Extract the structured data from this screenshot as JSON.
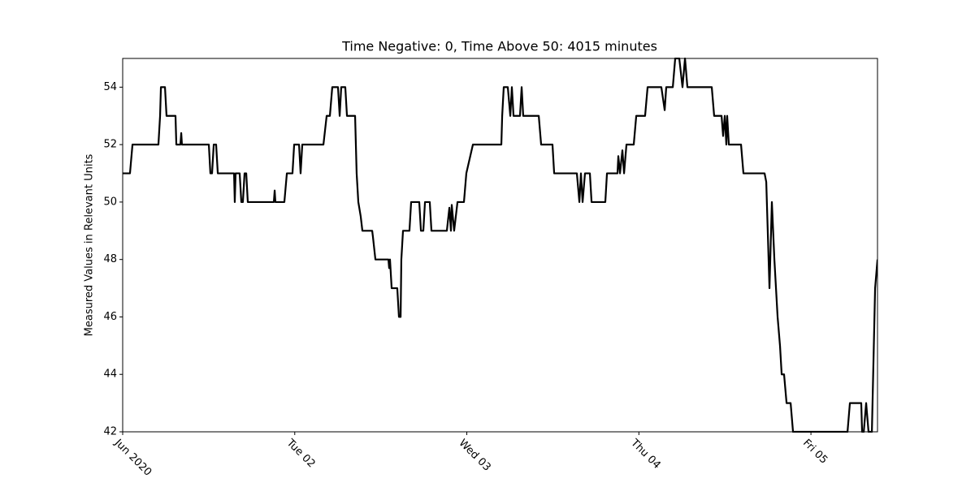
{
  "chart_data": {
    "type": "line",
    "title": "Time Negative: 0, Time Above 50: 4015 minutes",
    "ylabel": "Measured Values in Relevant Units",
    "color": "#000000",
    "xlim": [
      "2020-06-01T00:00",
      "2020-06-05T09:17"
    ],
    "xticks": [
      {
        "value": "2020-06-01T00:00",
        "label": "Jun 2020"
      },
      {
        "value": "2020-06-02T00:00",
        "label": "Tue 02"
      },
      {
        "value": "2020-06-03T00:00",
        "label": "Wed 03"
      },
      {
        "value": "2020-06-04T00:00",
        "label": "Thu 04"
      },
      {
        "value": "2020-06-05T00:00",
        "label": "Fri 05"
      }
    ],
    "ylim": [
      42,
      55
    ],
    "yticks": [
      42,
      44,
      46,
      48,
      50,
      52,
      54
    ],
    "x": [
      "2020-06-01T00:00",
      "2020-06-01T01:01",
      "2020-06-01T01:22",
      "2020-06-01T04:59",
      "2020-06-01T05:13",
      "2020-06-01T05:20",
      "2020-06-01T05:54",
      "2020-06-01T06:07",
      "2020-06-01T07:22",
      "2020-06-01T07:29",
      "2020-06-01T08:03",
      "2020-06-01T08:10",
      "2020-06-01T08:16",
      "2020-06-01T12:01",
      "2020-06-01T12:14",
      "2020-06-01T12:28",
      "2020-06-01T12:42",
      "2020-06-01T13:02",
      "2020-06-01T13:16",
      "2020-06-01T15:32",
      "2020-06-01T15:38",
      "2020-06-01T15:45",
      "2020-06-01T16:19",
      "2020-06-01T16:33",
      "2020-06-01T16:46",
      "2020-06-01T17:00",
      "2020-06-01T17:14",
      "2020-06-01T17:27",
      "2020-06-01T21:05",
      "2020-06-01T21:12",
      "2020-06-01T21:18",
      "2020-06-01T22:33",
      "2020-06-01T22:54",
      "2020-06-01T23:41",
      "2020-06-01T23:55",
      "2020-06-02T00:36",
      "2020-06-02T00:49",
      "2020-06-02T01:03",
      "2020-06-02T04:00",
      "2020-06-02T04:27",
      "2020-06-02T04:54",
      "2020-06-02T05:14",
      "2020-06-02T06:02",
      "2020-06-02T06:16",
      "2020-06-02T06:29",
      "2020-06-02T07:03",
      "2020-06-02T07:17",
      "2020-06-02T08:25",
      "2020-06-02T08:38",
      "2020-06-02T08:52",
      "2020-06-02T09:12",
      "2020-06-02T09:26",
      "2020-06-02T10:48",
      "2020-06-02T10:54",
      "2020-06-02T11:15",
      "2020-06-02T13:04",
      "2020-06-02T13:10",
      "2020-06-02T13:17",
      "2020-06-02T13:31",
      "2020-06-02T14:18",
      "2020-06-02T14:32",
      "2020-06-02T14:46",
      "2020-06-02T14:52",
      "2020-06-02T15:06",
      "2020-06-02T16:00",
      "2020-06-02T16:14",
      "2020-06-02T17:22",
      "2020-06-02T17:36",
      "2020-06-02T17:56",
      "2020-06-02T18:10",
      "2020-06-02T18:50",
      "2020-06-02T19:04",
      "2020-06-02T21:13",
      "2020-06-02T21:34",
      "2020-06-02T21:47",
      "2020-06-02T21:54",
      "2020-06-02T22:14",
      "2020-06-02T22:42",
      "2020-06-02T23:36",
      "2020-06-02T23:56",
      "2020-06-03T00:51",
      "2020-06-03T04:49",
      "2020-06-03T04:56",
      "2020-06-03T05:09",
      "2020-06-03T05:43",
      "2020-06-03T06:04",
      "2020-06-03T06:17",
      "2020-06-03T06:31",
      "2020-06-03T07:25",
      "2020-06-03T07:39",
      "2020-06-03T07:52",
      "2020-06-03T10:02",
      "2020-06-03T10:22",
      "2020-06-03T11:57",
      "2020-06-03T12:11",
      "2020-06-03T15:21",
      "2020-06-03T15:42",
      "2020-06-03T15:55",
      "2020-06-03T16:09",
      "2020-06-03T16:29",
      "2020-06-03T17:10",
      "2020-06-03T17:24",
      "2020-06-03T19:19",
      "2020-06-03T19:33",
      "2020-06-03T21:01",
      "2020-06-03T21:08",
      "2020-06-03T21:22",
      "2020-06-03T21:42",
      "2020-06-03T21:56",
      "2020-06-03T22:16",
      "2020-06-03T23:17",
      "2020-06-03T23:38",
      "2020-06-04T00:52",
      "2020-06-04T01:13",
      "2020-06-04T03:08",
      "2020-06-04T03:36",
      "2020-06-04T03:49",
      "2020-06-04T04:44",
      "2020-06-04T05:04",
      "2020-06-04T05:38",
      "2020-06-04T06:05",
      "2020-06-04T06:26",
      "2020-06-04T06:46",
      "2020-06-04T10:10",
      "2020-06-04T10:30",
      "2020-06-04T11:32",
      "2020-06-04T11:45",
      "2020-06-04T11:59",
      "2020-06-04T12:12",
      "2020-06-04T12:19",
      "2020-06-04T12:33",
      "2020-06-04T14:15",
      "2020-06-04T14:35",
      "2020-06-04T17:32",
      "2020-06-04T17:46",
      "2020-06-04T18:13",
      "2020-06-04T18:33",
      "2020-06-04T18:54",
      "2020-06-04T19:21",
      "2020-06-04T19:41",
      "2020-06-04T19:55",
      "2020-06-04T20:15",
      "2020-06-04T20:36",
      "2020-06-04T21:10",
      "2020-06-04T21:30",
      "2020-06-05T05:06",
      "2020-06-05T05:26",
      "2020-06-05T07:01",
      "2020-06-05T07:08",
      "2020-06-05T07:22",
      "2020-06-05T07:42",
      "2020-06-05T08:02",
      "2020-06-05T08:30",
      "2020-06-05T08:57",
      "2020-06-05T09:17"
    ],
    "values": [
      51,
      51,
      52,
      52,
      53,
      54,
      54,
      53,
      53,
      52,
      52,
      52.4,
      52,
      52,
      51,
      51,
      52,
      52,
      51,
      51,
      50,
      51,
      51,
      50,
      50,
      51,
      51,
      50,
      50,
      50.4,
      50,
      50,
      51,
      51,
      52,
      52,
      51,
      52,
      52,
      53,
      53,
      54,
      54,
      53,
      54,
      54,
      53,
      53,
      51,
      50,
      49.5,
      49,
      49,
      48.8,
      48,
      48,
      47.7,
      48,
      47,
      47,
      46,
      46,
      48,
      49,
      49,
      50,
      50,
      49,
      49,
      50,
      50,
      49,
      49,
      49.8,
      49,
      49.9,
      49,
      50,
      50,
      51,
      52,
      52,
      53,
      54,
      54,
      53,
      54,
      53,
      53,
      54,
      53,
      53,
      52,
      52,
      51,
      51,
      50,
      51,
      50,
      51,
      51,
      50,
      50,
      51,
      51,
      51.6,
      51,
      51.8,
      51,
      52,
      52,
      53,
      53,
      54,
      54,
      53.2,
      54,
      54,
      55,
      55,
      54,
      55,
      54,
      54,
      53,
      53,
      52.3,
      53,
      52,
      53,
      52,
      52,
      51,
      51,
      50.7,
      47,
      50,
      48,
      46,
      45,
      44,
      44,
      43,
      43,
      42,
      42,
      43,
      43,
      42,
      42,
      43,
      42,
      42,
      47,
      48
    ]
  }
}
